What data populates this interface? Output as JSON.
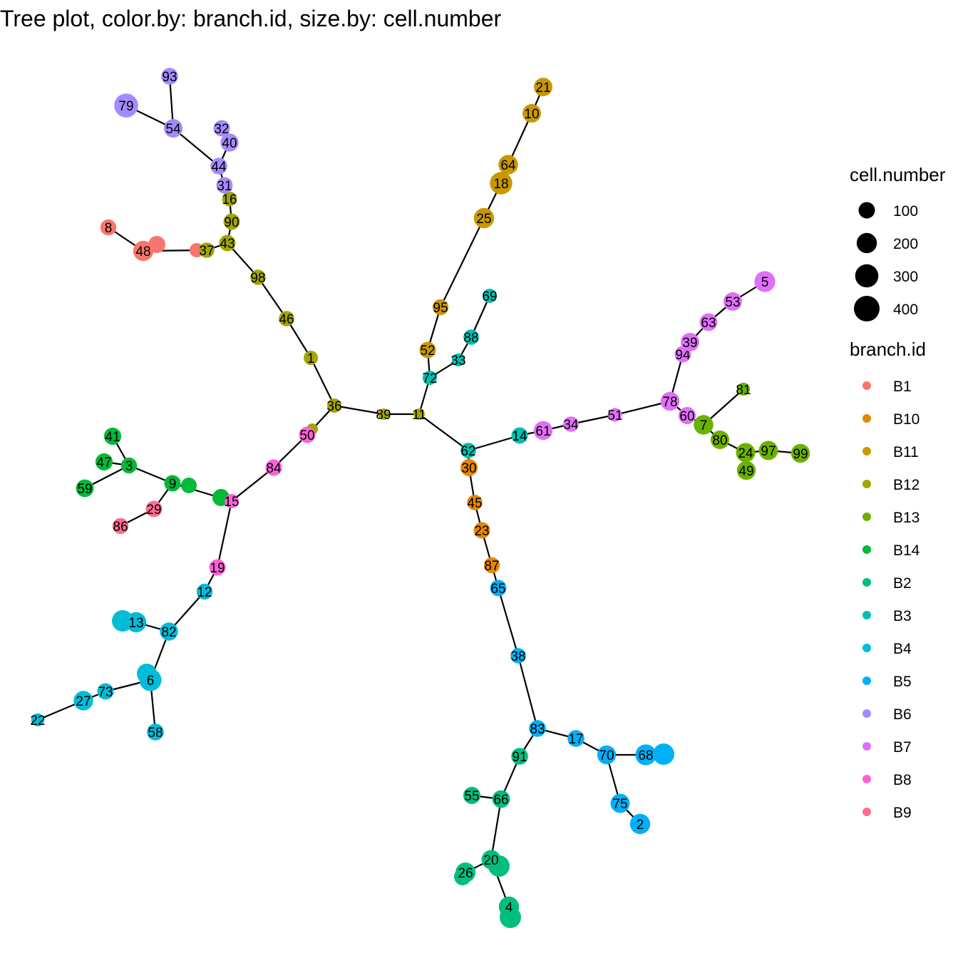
{
  "title": "Tree plot, color.by: branch.id, size.by: cell.number",
  "chart_data": {
    "type": "tree",
    "title": "Tree plot, color.by: branch.id, size.by: cell.number",
    "branch_colors": {
      "B1": "#F8766D",
      "B10": "#E58700",
      "B11": "#C99800",
      "B12": "#A3A500",
      "B13": "#6BB100",
      "B14": "#00BA38",
      "B2": "#00BF7D",
      "B3": "#00C0AF",
      "B4": "#00BCD8",
      "B5": "#00B0F6",
      "B6": "#A58AFF",
      "B7": "#DF70F8",
      "B8": "#FB61D7",
      "B9": "#FF6C91"
    },
    "legend": {
      "size_title": "cell.number",
      "size_breaks": [
        100,
        200,
        300,
        400
      ],
      "size_labels": [
        "100",
        "200",
        "300",
        "400"
      ],
      "color_title": "branch.id",
      "color_entries": [
        "B1",
        "B10",
        "B11",
        "B12",
        "B13",
        "B14",
        "B2",
        "B3",
        "B4",
        "B5",
        "B6",
        "B7",
        "B8",
        "B9"
      ]
    },
    "edges": [
      [
        89,
        11
      ],
      [
        89,
        36
      ],
      [
        36,
        1
      ],
      [
        1,
        46
      ],
      [
        46,
        98
      ],
      [
        98,
        43
      ],
      [
        43,
        90
      ],
      [
        90,
        16
      ],
      [
        16,
        31
      ],
      [
        31,
        44
      ],
      [
        44,
        54
      ],
      [
        54,
        93
      ],
      [
        54,
        79
      ],
      [
        44,
        40
      ],
      [
        43,
        37
      ],
      [
        37,
        48
      ],
      [
        48,
        8
      ],
      [
        36,
        50
      ],
      [
        50,
        84
      ],
      [
        84,
        15
      ],
      [
        15,
        9
      ],
      [
        9,
        3
      ],
      [
        3,
        41
      ],
      [
        3,
        47
      ],
      [
        3,
        59
      ],
      [
        9,
        29
      ],
      [
        29,
        86
      ],
      [
        15,
        19
      ],
      [
        19,
        12
      ],
      [
        12,
        82
      ],
      [
        82,
        13
      ],
      [
        82,
        6
      ],
      [
        6,
        58
      ],
      [
        6,
        73
      ],
      [
        73,
        27
      ],
      [
        27,
        22
      ],
      [
        11,
        72
      ],
      [
        72,
        33
      ],
      [
        33,
        88
      ],
      [
        88,
        69
      ],
      [
        72,
        52
      ],
      [
        52,
        95
      ],
      [
        95,
        25
      ],
      [
        25,
        18
      ],
      [
        18,
        64
      ],
      [
        64,
        10
      ],
      [
        10,
        21
      ],
      [
        11,
        62
      ],
      [
        62,
        14
      ],
      [
        14,
        61
      ],
      [
        61,
        34
      ],
      [
        34,
        51
      ],
      [
        51,
        78
      ],
      [
        78,
        94
      ],
      [
        94,
        39
      ],
      [
        39,
        63
      ],
      [
        63,
        53
      ],
      [
        53,
        5
      ],
      [
        78,
        60
      ],
      [
        60,
        7
      ],
      [
        7,
        81
      ],
      [
        7,
        80
      ],
      [
        80,
        24
      ],
      [
        24,
        97
      ],
      [
        97,
        99
      ],
      [
        24,
        49
      ],
      [
        62,
        30
      ],
      [
        30,
        45
      ],
      [
        45,
        23
      ],
      [
        23,
        87
      ],
      [
        87,
        65
      ],
      [
        65,
        38
      ],
      [
        38,
        83
      ],
      [
        83,
        17
      ],
      [
        17,
        70
      ],
      [
        70,
        68
      ],
      [
        70,
        75
      ],
      [
        75,
        2
      ],
      [
        83,
        91
      ],
      [
        91,
        66
      ],
      [
        66,
        55
      ],
      [
        66,
        20
      ],
      [
        20,
        26
      ],
      [
        20,
        4
      ]
    ],
    "nodes": [
      {
        "id": 89,
        "label": "89",
        "branch": "B12",
        "cells": 20
      },
      {
        "id": 11,
        "label": "11",
        "branch": "B12",
        "cells": 20
      },
      {
        "id": 36,
        "label": "36",
        "branch": "B12",
        "cells": 60
      },
      {
        "id": 1,
        "label": "1",
        "branch": "B12",
        "cells": 60
      },
      {
        "id": 46,
        "label": "46",
        "branch": "B12",
        "cells": 80
      },
      {
        "id": 98,
        "label": "98",
        "branch": "B12",
        "cells": 80
      },
      {
        "id": 43,
        "label": "43",
        "branch": "B12",
        "cells": 100
      },
      {
        "id": 90,
        "label": "90",
        "branch": "B12",
        "cells": 100
      },
      {
        "id": 16,
        "label": "16",
        "branch": "B12",
        "cells": 70
      },
      {
        "id": 37,
        "label": "37",
        "branch": "B12",
        "cells": 80
      },
      {
        "id": 31,
        "label": "31",
        "branch": "B6",
        "cells": 100
      },
      {
        "id": 44,
        "label": "44",
        "branch": "B6",
        "cells": 110
      },
      {
        "id": 54,
        "label": "54",
        "branch": "B6",
        "cells": 150
      },
      {
        "id": 93,
        "label": "93",
        "branch": "B6",
        "cells": 110
      },
      {
        "id": 79,
        "label": "79",
        "branch": "B6",
        "cells": 330
      },
      {
        "id": 32,
        "label": "32",
        "branch": "B6",
        "cells": 100
      },
      {
        "id": 40,
        "label": "40",
        "branch": "B6",
        "cells": 140
      },
      {
        "id": 48,
        "label": "48",
        "branch": "B1",
        "cells": 200
      },
      {
        "id": 8,
        "label": "8",
        "branch": "B1",
        "cells": 90
      },
      {
        "id": 50,
        "label": "50",
        "branch": "B8",
        "cells": 100
      },
      {
        "id": 84,
        "label": "84",
        "branch": "B8",
        "cells": 100
      },
      {
        "id": 15,
        "label": "15",
        "branch": "B8",
        "cells": 60
      },
      {
        "id": 19,
        "label": "19",
        "branch": "B8",
        "cells": 100
      },
      {
        "id": 9,
        "label": "9",
        "branch": "B14",
        "cells": 100
      },
      {
        "id": 3,
        "label": "3",
        "branch": "B14",
        "cells": 90
      },
      {
        "id": 41,
        "label": "41",
        "branch": "B14",
        "cells": 120
      },
      {
        "id": 47,
        "label": "47",
        "branch": "B14",
        "cells": 120
      },
      {
        "id": 59,
        "label": "59",
        "branch": "B14",
        "cells": 130
      },
      {
        "id": 29,
        "label": "29",
        "branch": "B9",
        "cells": 100
      },
      {
        "id": 86,
        "label": "86",
        "branch": "B9",
        "cells": 90
      },
      {
        "id": 12,
        "label": "12",
        "branch": "B4",
        "cells": 90
      },
      {
        "id": 82,
        "label": "82",
        "branch": "B4",
        "cells": 140
      },
      {
        "id": 13,
        "label": "13",
        "branch": "B4",
        "cells": 200
      },
      {
        "id": 6,
        "label": "6",
        "branch": "B4",
        "cells": 260
      },
      {
        "id": 58,
        "label": "58",
        "branch": "B4",
        "cells": 110
      },
      {
        "id": 73,
        "label": "73",
        "branch": "B4",
        "cells": 100
      },
      {
        "id": 27,
        "label": "27",
        "branch": "B4",
        "cells": 180
      },
      {
        "id": 22,
        "label": "22",
        "branch": "B4",
        "cells": 40
      },
      {
        "id": 72,
        "label": "72",
        "branch": "B3",
        "cells": 60
      },
      {
        "id": 33,
        "label": "33",
        "branch": "B3",
        "cells": 40
      },
      {
        "id": 88,
        "label": "88",
        "branch": "B3",
        "cells": 80
      },
      {
        "id": 69,
        "label": "69",
        "branch": "B3",
        "cells": 60
      },
      {
        "id": 52,
        "label": "52",
        "branch": "B11",
        "cells": 100
      },
      {
        "id": 95,
        "label": "95",
        "branch": "B11",
        "cells": 90
      },
      {
        "id": 25,
        "label": "25",
        "branch": "B11",
        "cells": 200
      },
      {
        "id": 18,
        "label": "18",
        "branch": "B11",
        "cells": 270
      },
      {
        "id": 64,
        "label": "64",
        "branch": "B11",
        "cells": 180
      },
      {
        "id": 10,
        "label": "10",
        "branch": "B11",
        "cells": 150
      },
      {
        "id": 21,
        "label": "21",
        "branch": "B11",
        "cells": 150
      },
      {
        "id": 62,
        "label": "62",
        "branch": "B3",
        "cells": 80
      },
      {
        "id": 14,
        "label": "14",
        "branch": "B3",
        "cells": 100
      },
      {
        "id": 61,
        "label": "61",
        "branch": "B7",
        "cells": 160
      },
      {
        "id": 34,
        "label": "34",
        "branch": "B7",
        "cells": 80
      },
      {
        "id": 51,
        "label": "51",
        "branch": "B7",
        "cells": 50
      },
      {
        "id": 78,
        "label": "78",
        "branch": "B7",
        "cells": 160
      },
      {
        "id": 94,
        "label": "94",
        "branch": "B7",
        "cells": 100
      },
      {
        "id": 39,
        "label": "39",
        "branch": "B7",
        "cells": 150
      },
      {
        "id": 63,
        "label": "63",
        "branch": "B7",
        "cells": 130
      },
      {
        "id": 53,
        "label": "53",
        "branch": "B7",
        "cells": 150
      },
      {
        "id": 5,
        "label": "5",
        "branch": "B7",
        "cells": 220
      },
      {
        "id": 60,
        "label": "60",
        "branch": "B7",
        "cells": 120
      },
      {
        "id": 7,
        "label": "7",
        "branch": "B13",
        "cells": 180
      },
      {
        "id": 81,
        "label": "81",
        "branch": "B13",
        "cells": 40
      },
      {
        "id": 80,
        "label": "80",
        "branch": "B13",
        "cells": 150
      },
      {
        "id": 24,
        "label": "24",
        "branch": "B13",
        "cells": 170
      },
      {
        "id": 97,
        "label": "97",
        "branch": "B13",
        "cells": 170
      },
      {
        "id": 99,
        "label": "99",
        "branch": "B13",
        "cells": 160
      },
      {
        "id": 49,
        "label": "49",
        "branch": "B13",
        "cells": 160
      },
      {
        "id": 30,
        "label": "30",
        "branch": "B10",
        "cells": 120
      },
      {
        "id": 45,
        "label": "45",
        "branch": "B10",
        "cells": 80
      },
      {
        "id": 23,
        "label": "23",
        "branch": "B10",
        "cells": 100
      },
      {
        "id": 87,
        "label": "87",
        "branch": "B10",
        "cells": 90
      },
      {
        "id": 65,
        "label": "65",
        "branch": "B5",
        "cells": 100
      },
      {
        "id": 38,
        "label": "38",
        "branch": "B5",
        "cells": 80
      },
      {
        "id": 83,
        "label": "83",
        "branch": "B5",
        "cells": 110
      },
      {
        "id": 17,
        "label": "17",
        "branch": "B5",
        "cells": 110
      },
      {
        "id": 70,
        "label": "70",
        "branch": "B5",
        "cells": 160
      },
      {
        "id": 68,
        "label": "68",
        "branch": "B5",
        "cells": 220
      },
      {
        "id": 75,
        "label": "75",
        "branch": "B5",
        "cells": 170
      },
      {
        "id": 2,
        "label": "2",
        "branch": "B5",
        "cells": 200
      },
      {
        "id": 91,
        "label": "91",
        "branch": "B2",
        "cells": 110
      },
      {
        "id": 66,
        "label": "66",
        "branch": "B2",
        "cells": 130
      },
      {
        "id": 55,
        "label": "55",
        "branch": "B2",
        "cells": 120
      },
      {
        "id": 20,
        "label": "20",
        "branch": "B2",
        "cells": 170
      },
      {
        "id": 26,
        "label": "26",
        "branch": "B2",
        "cells": 190
      },
      {
        "id": 4,
        "label": "4",
        "branch": "B2",
        "cells": 200
      }
    ]
  }
}
